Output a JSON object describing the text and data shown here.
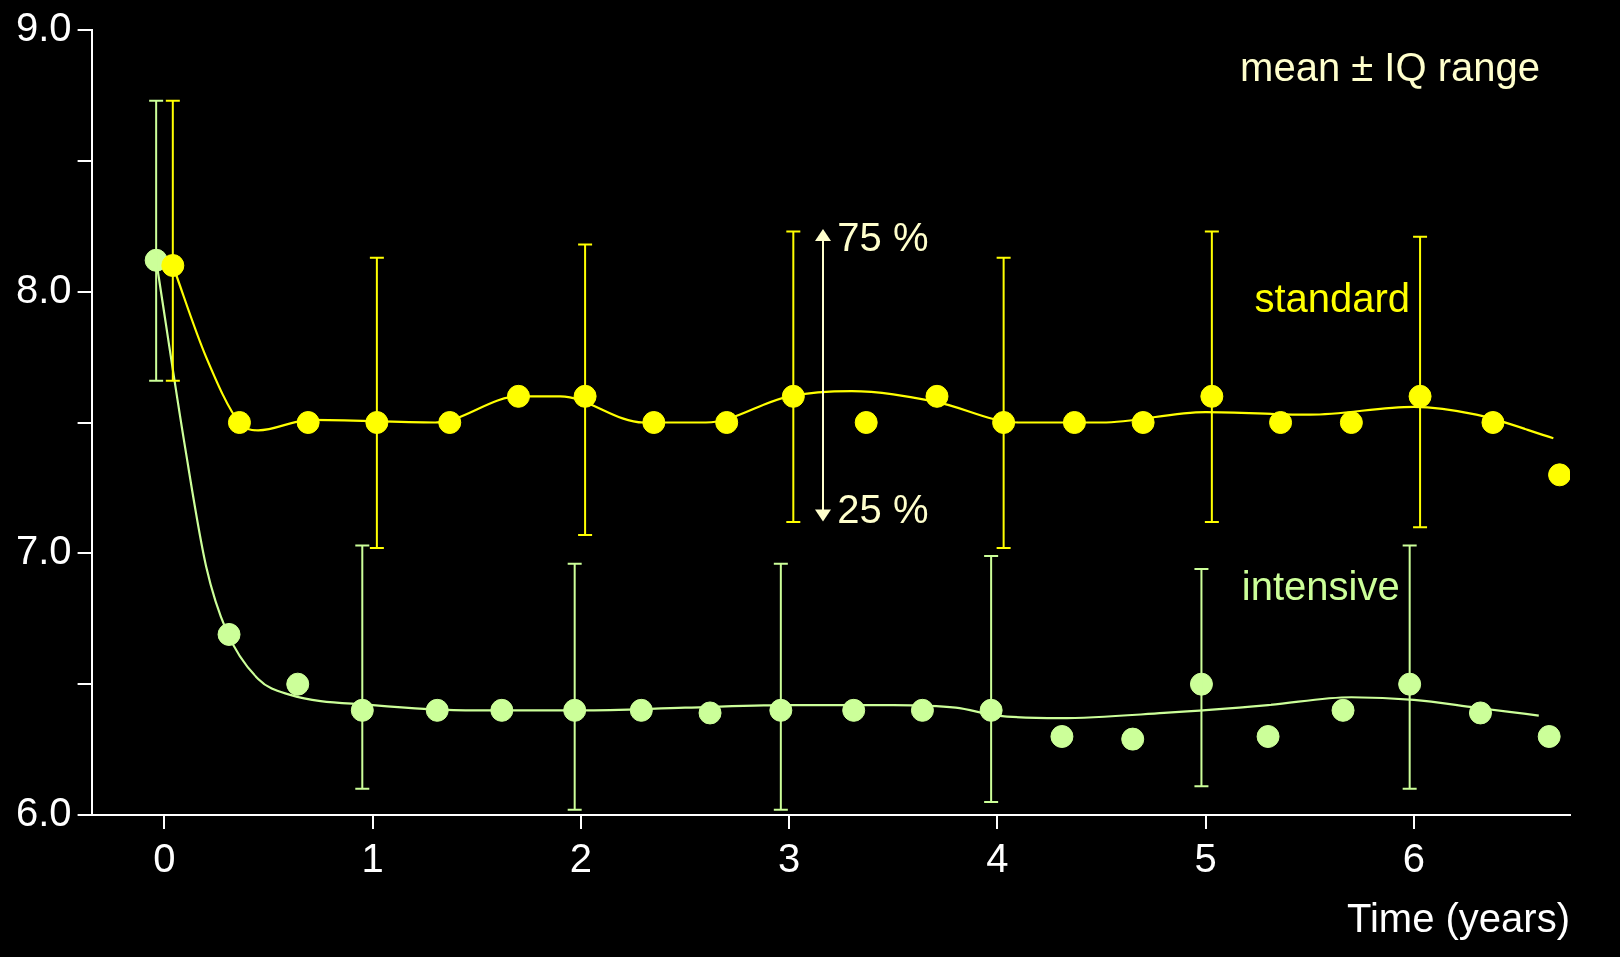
{
  "chart_data": {
    "type": "scatter",
    "xlabel": "Time (years)",
    "xlim": [
      -0.35,
      6.75
    ],
    "xticks": [
      0,
      1,
      2,
      3,
      4,
      5,
      6
    ],
    "ylim": [
      6,
      9
    ],
    "yticks": [
      {
        "value": 6,
        "label": "6.0"
      },
      {
        "value": 6.5,
        "label": null
      },
      {
        "value": 7,
        "label": "7.0"
      },
      {
        "value": 7.5,
        "label": null
      },
      {
        "value": 8,
        "label": "8.0"
      },
      {
        "value": 8.5,
        "label": null
      },
      {
        "value": 9,
        "label": "9.0"
      }
    ],
    "legend": false,
    "annotations": [
      "mean ± IQ range",
      "75 %",
      "25 %"
    ],
    "series": [
      {
        "name": "standard",
        "color": "#ffff00",
        "marker": "circle",
        "x": [
          0.04,
          0.36,
          0.69,
          1.02,
          1.37,
          1.7,
          2.02,
          2.35,
          2.7,
          3.02,
          3.37,
          3.71,
          4.03,
          4.37,
          4.7,
          5.03,
          5.36,
          5.7,
          6.03,
          6.38,
          6.7
        ],
        "values": [
          8.1,
          7.5,
          7.5,
          7.5,
          7.5,
          7.6,
          7.6,
          7.5,
          7.5,
          7.6,
          7.5,
          7.6,
          7.5,
          7.5,
          7.5,
          7.6,
          7.5,
          7.5,
          7.6,
          7.5,
          7.3
        ],
        "errors": [
          [
            7.66,
            8.73
          ],
          null,
          null,
          [
            7.02,
            8.13
          ],
          null,
          null,
          [
            7.07,
            8.18
          ],
          null,
          null,
          [
            7.12,
            8.23
          ],
          null,
          null,
          [
            7.02,
            8.13
          ],
          null,
          null,
          [
            7.12,
            8.23
          ],
          null,
          null,
          [
            7.1,
            8.21
          ],
          null,
          null
        ]
      },
      {
        "name": "intensive",
        "color": "#ccff99",
        "marker": "circle",
        "x": [
          -0.04,
          0.31,
          0.64,
          0.95,
          1.31,
          1.62,
          1.97,
          2.29,
          2.62,
          2.96,
          3.31,
          3.64,
          3.97,
          4.31,
          4.65,
          4.98,
          5.3,
          5.66,
          5.98,
          6.32,
          6.65
        ],
        "values": [
          8.12,
          6.69,
          6.5,
          6.4,
          6.4,
          6.4,
          6.4,
          6.4,
          6.39,
          6.4,
          6.4,
          6.4,
          6.4,
          6.3,
          6.29,
          6.5,
          6.3,
          6.4,
          6.5,
          6.39,
          6.3
        ],
        "errors": [
          [
            7.66,
            8.73
          ],
          null,
          null,
          [
            6.1,
            7.03
          ],
          null,
          null,
          [
            6.02,
            6.96
          ],
          null,
          null,
          [
            6.02,
            6.96
          ],
          null,
          null,
          [
            6.05,
            6.99
          ],
          null,
          null,
          [
            6.11,
            6.94
          ],
          null,
          null,
          [
            6.1,
            7.03
          ],
          null,
          null
        ]
      },
      {
        "type": "line",
        "color": "#ffff00",
        "marker": "none",
        "x": [
          0.04,
          0.2,
          0.36,
          0.45,
          0.7,
          1.3,
          1.7,
          1.9,
          2.3,
          2.6,
          3.0,
          3.3,
          3.7,
          4.1,
          4.5,
          5.0,
          5.5,
          6.0,
          6.3,
          6.67
        ],
        "values": [
          8.1,
          7.75,
          7.5,
          7.47,
          7.51,
          7.5,
          7.6,
          7.6,
          7.5,
          7.5,
          7.6,
          7.62,
          7.58,
          7.5,
          7.5,
          7.54,
          7.53,
          7.56,
          7.53,
          7.44
        ]
      },
      {
        "type": "line",
        "color": "#ccff99",
        "marker": "none",
        "x": [
          -0.04,
          0.1,
          0.2,
          0.3,
          0.45,
          0.6,
          1.0,
          1.5,
          2.0,
          2.5,
          3.0,
          3.5,
          3.8,
          4.0,
          4.3,
          4.8,
          5.3,
          5.7,
          6.0,
          6.3,
          6.6
        ],
        "values": [
          8.12,
          7.4,
          6.95,
          6.7,
          6.52,
          6.46,
          6.42,
          6.4,
          6.4,
          6.41,
          6.42,
          6.42,
          6.41,
          6.38,
          6.37,
          6.39,
          6.42,
          6.45,
          6.44,
          6.41,
          6.38
        ]
      }
    ]
  }
}
